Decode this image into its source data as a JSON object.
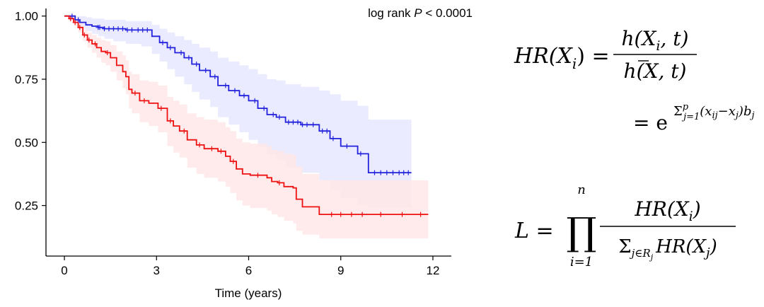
{
  "chart_data": {
    "type": "line",
    "subtype": "kaplan-meier",
    "title": "",
    "xlabel": "Time (years)",
    "ylabel": "",
    "xlim": [
      -0.6,
      12.6
    ],
    "ylim": [
      0.05,
      1.03
    ],
    "xticks": [
      0,
      3,
      6,
      9,
      12
    ],
    "xtick_labels": [
      "0",
      "3",
      "6",
      "9",
      "12"
    ],
    "yticks": [
      0.25,
      0.5,
      0.75,
      1.0
    ],
    "ytick_labels": [
      "0.25",
      "0.50",
      "0.75",
      "1.00"
    ],
    "grid": false,
    "legend": "none",
    "annotation": {
      "prefix": "log rank ",
      "p_symbol": "P",
      "suffix": " < 0.0001"
    },
    "series": [
      {
        "color": "#2222dd",
        "band_color": "#e6e8ff",
        "x": [
          0.0,
          0.35,
          0.5,
          0.7,
          0.9,
          1.1,
          1.3,
          1.6,
          2.0,
          2.5,
          2.85,
          3.1,
          3.35,
          3.6,
          3.9,
          4.15,
          4.4,
          4.75,
          5.0,
          5.35,
          5.7,
          6.0,
          6.3,
          6.6,
          6.9,
          7.2,
          7.7,
          8.3,
          8.65,
          9.0,
          9.55,
          9.9,
          11.3
        ],
        "y": [
          1.0,
          0.985,
          0.975,
          0.965,
          0.96,
          0.955,
          0.95,
          0.95,
          0.945,
          0.945,
          0.92,
          0.895,
          0.875,
          0.855,
          0.835,
          0.81,
          0.785,
          0.76,
          0.725,
          0.705,
          0.685,
          0.665,
          0.635,
          0.61,
          0.6,
          0.58,
          0.57,
          0.545,
          0.515,
          0.485,
          0.455,
          0.38,
          0.38
        ],
        "lower": [
          1.0,
          0.97,
          0.95,
          0.94,
          0.93,
          0.92,
          0.91,
          0.9,
          0.89,
          0.88,
          0.85,
          0.82,
          0.79,
          0.76,
          0.73,
          0.7,
          0.67,
          0.64,
          0.6,
          0.57,
          0.54,
          0.51,
          0.48,
          0.45,
          0.43,
          0.4,
          0.38,
          0.35,
          0.31,
          0.28,
          0.25,
          0.24,
          0.24
        ],
        "upper": [
          1.0,
          1.0,
          1.0,
          0.995,
          0.99,
          0.99,
          0.985,
          0.985,
          0.98,
          0.98,
          0.965,
          0.95,
          0.935,
          0.92,
          0.905,
          0.89,
          0.875,
          0.86,
          0.835,
          0.82,
          0.805,
          0.79,
          0.77,
          0.75,
          0.745,
          0.73,
          0.72,
          0.705,
          0.69,
          0.665,
          0.645,
          0.59,
          0.59
        ],
        "censor_x": [
          0.25,
          0.45,
          1.1,
          1.15,
          1.3,
          1.45,
          1.6,
          1.75,
          1.9,
          2.05,
          2.2,
          2.4,
          2.55,
          2.7,
          3.2,
          3.45,
          3.8,
          4.05,
          4.3,
          4.6,
          4.9,
          5.25,
          5.55,
          5.85,
          6.2,
          6.5,
          6.8,
          7.0,
          7.3,
          7.45,
          7.6,
          7.75,
          7.9,
          8.1,
          8.4,
          8.55,
          8.75,
          9.2,
          9.65,
          10.1,
          10.3,
          10.5,
          10.7,
          10.9,
          11.05,
          11.2
        ]
      },
      {
        "color": "#ee1111",
        "band_color": "#ffe8e8",
        "x": [
          0.0,
          0.15,
          0.3,
          0.45,
          0.6,
          0.75,
          0.9,
          1.05,
          1.2,
          1.35,
          1.5,
          1.7,
          1.9,
          2.0,
          2.1,
          2.2,
          2.45,
          2.75,
          3.05,
          3.35,
          3.55,
          3.75,
          4.0,
          4.3,
          4.55,
          5.0,
          5.25,
          5.4,
          5.6,
          5.8,
          6.05,
          6.6,
          6.75,
          6.95,
          7.15,
          7.45,
          7.55,
          7.75,
          8.3,
          11.85
        ],
        "y": [
          1.0,
          0.99,
          0.975,
          0.955,
          0.925,
          0.905,
          0.89,
          0.875,
          0.86,
          0.855,
          0.835,
          0.805,
          0.78,
          0.76,
          0.71,
          0.695,
          0.665,
          0.655,
          0.635,
          0.585,
          0.565,
          0.545,
          0.51,
          0.49,
          0.475,
          0.465,
          0.445,
          0.425,
          0.395,
          0.375,
          0.37,
          0.36,
          0.345,
          0.34,
          0.325,
          0.32,
          0.275,
          0.245,
          0.215,
          0.215
        ],
        "lower": [
          1.0,
          0.98,
          0.96,
          0.935,
          0.9,
          0.875,
          0.855,
          0.835,
          0.815,
          0.805,
          0.78,
          0.745,
          0.715,
          0.69,
          0.635,
          0.615,
          0.58,
          0.565,
          0.54,
          0.485,
          0.46,
          0.44,
          0.4,
          0.375,
          0.36,
          0.345,
          0.325,
          0.3,
          0.27,
          0.25,
          0.24,
          0.23,
          0.215,
          0.205,
          0.19,
          0.18,
          0.15,
          0.135,
          0.12,
          0.12
        ],
        "upper": [
          1.0,
          1.0,
          0.99,
          0.975,
          0.95,
          0.935,
          0.925,
          0.915,
          0.905,
          0.9,
          0.885,
          0.86,
          0.845,
          0.825,
          0.78,
          0.77,
          0.745,
          0.74,
          0.725,
          0.68,
          0.665,
          0.65,
          0.615,
          0.6,
          0.59,
          0.58,
          0.56,
          0.545,
          0.515,
          0.5,
          0.495,
          0.485,
          0.47,
          0.465,
          0.455,
          0.45,
          0.405,
          0.375,
          0.35,
          0.35
        ],
        "censor_x": [
          0.2,
          0.35,
          0.5,
          0.65,
          0.8,
          1.0,
          1.4,
          2.3,
          2.6,
          3.15,
          3.45,
          3.9,
          4.4,
          4.8,
          5.1,
          5.5,
          6.3,
          7.0,
          8.7,
          9.0,
          9.35,
          9.7,
          10.3,
          11.0,
          11.6
        ]
      }
    ]
  },
  "equations": {
    "hr_definition": {
      "lhs": "HR(X",
      "lhs_sub": "i",
      "lhs_close": ") =",
      "num": "h(X",
      "num_sub": "i",
      "num_close": ", t)",
      "den_open": "h(",
      "den_var": "X",
      "den_close": ", t)",
      "eq2": "= e",
      "exp_sum": "Σ",
      "exp_sup": "p",
      "exp_sub": "j=1",
      "exp_body_open": "(x",
      "exp_body_sub1": "ij",
      "exp_body_mid": "−x",
      "exp_body_sub2": "j",
      "exp_body_close": ")b",
      "exp_body_sub3": "j"
    },
    "likelihood": {
      "lhs": "L =",
      "prod": "∏",
      "prod_sup": "n",
      "prod_sub": "i=1",
      "num": "HR(X",
      "num_sub": "i",
      "num_close": ")",
      "den_sum": "Σ",
      "den_sub_main": "j∈R",
      "den_sub_sub": "j",
      "den_body": "HR(X",
      "den_body_sub": "j",
      "den_body_close": ")"
    }
  }
}
